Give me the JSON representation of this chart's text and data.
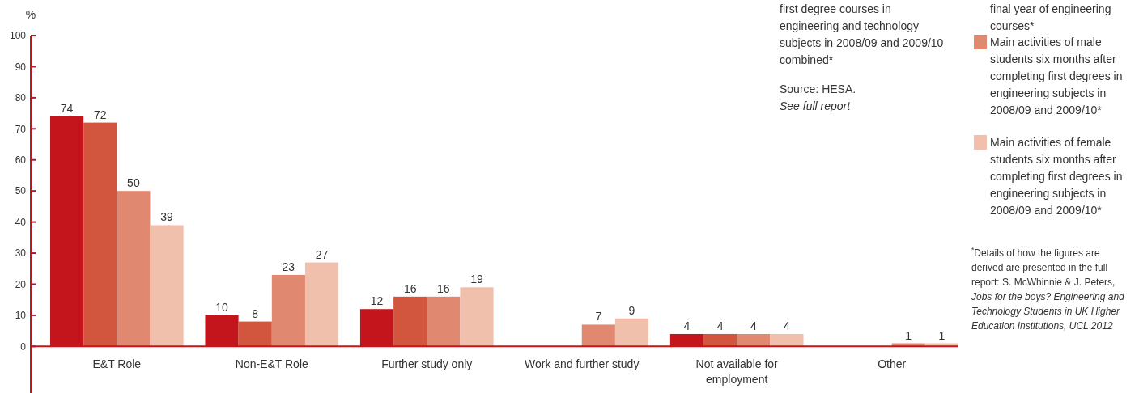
{
  "chart_data": {
    "type": "bar",
    "ylabel": "%",
    "categories": [
      "E&T Role",
      "Non-E&T Role",
      "Further study only",
      "Work and further study",
      "Not available for employment",
      "Other"
    ],
    "series": [
      {
        "color": "#c4141c",
        "values": [
          74,
          10,
          12,
          null,
          4,
          null
        ]
      },
      {
        "color": "#d2553d",
        "values": [
          72,
          8,
          16,
          null,
          4,
          null
        ]
      },
      {
        "name": "Main activities of male students six months after completing first degrees in engineering subjects in 2008/09 and 2009/10*",
        "color": "#e08870",
        "values": [
          50,
          23,
          16,
          7,
          4,
          1
        ]
      },
      {
        "name": "Main activities of female students six months after completing first degrees in engineering subjects in 2008/09 and 2009/10*",
        "color": "#f0c0ac",
        "values": [
          39,
          27,
          19,
          9,
          4,
          1
        ]
      }
    ],
    "ylim": [
      -15,
      100
    ],
    "yticks": [
      0,
      10,
      20,
      30,
      40,
      50,
      60,
      70,
      80,
      90,
      100
    ],
    "ref_lines": [
      {
        "axis": "y",
        "value": 0,
        "color": "#c4141c"
      }
    ],
    "grid": false,
    "legend": "right",
    "data_labels": true,
    "annotations": [
      "first degree courses in engineering and technology subjects in 2008/09 and 2009/10 combined*",
      "Source: HESA.",
      "See full report",
      "final year of engineering courses*",
      "$^{*}$Details of how the figures are derived are presented in the full report: S. McWhinnie & J. Peters,",
      "Jobs for the boys? Engineering and Technology Students in UK Higher Education Institutions, UCL 2012"
    ]
  }
}
